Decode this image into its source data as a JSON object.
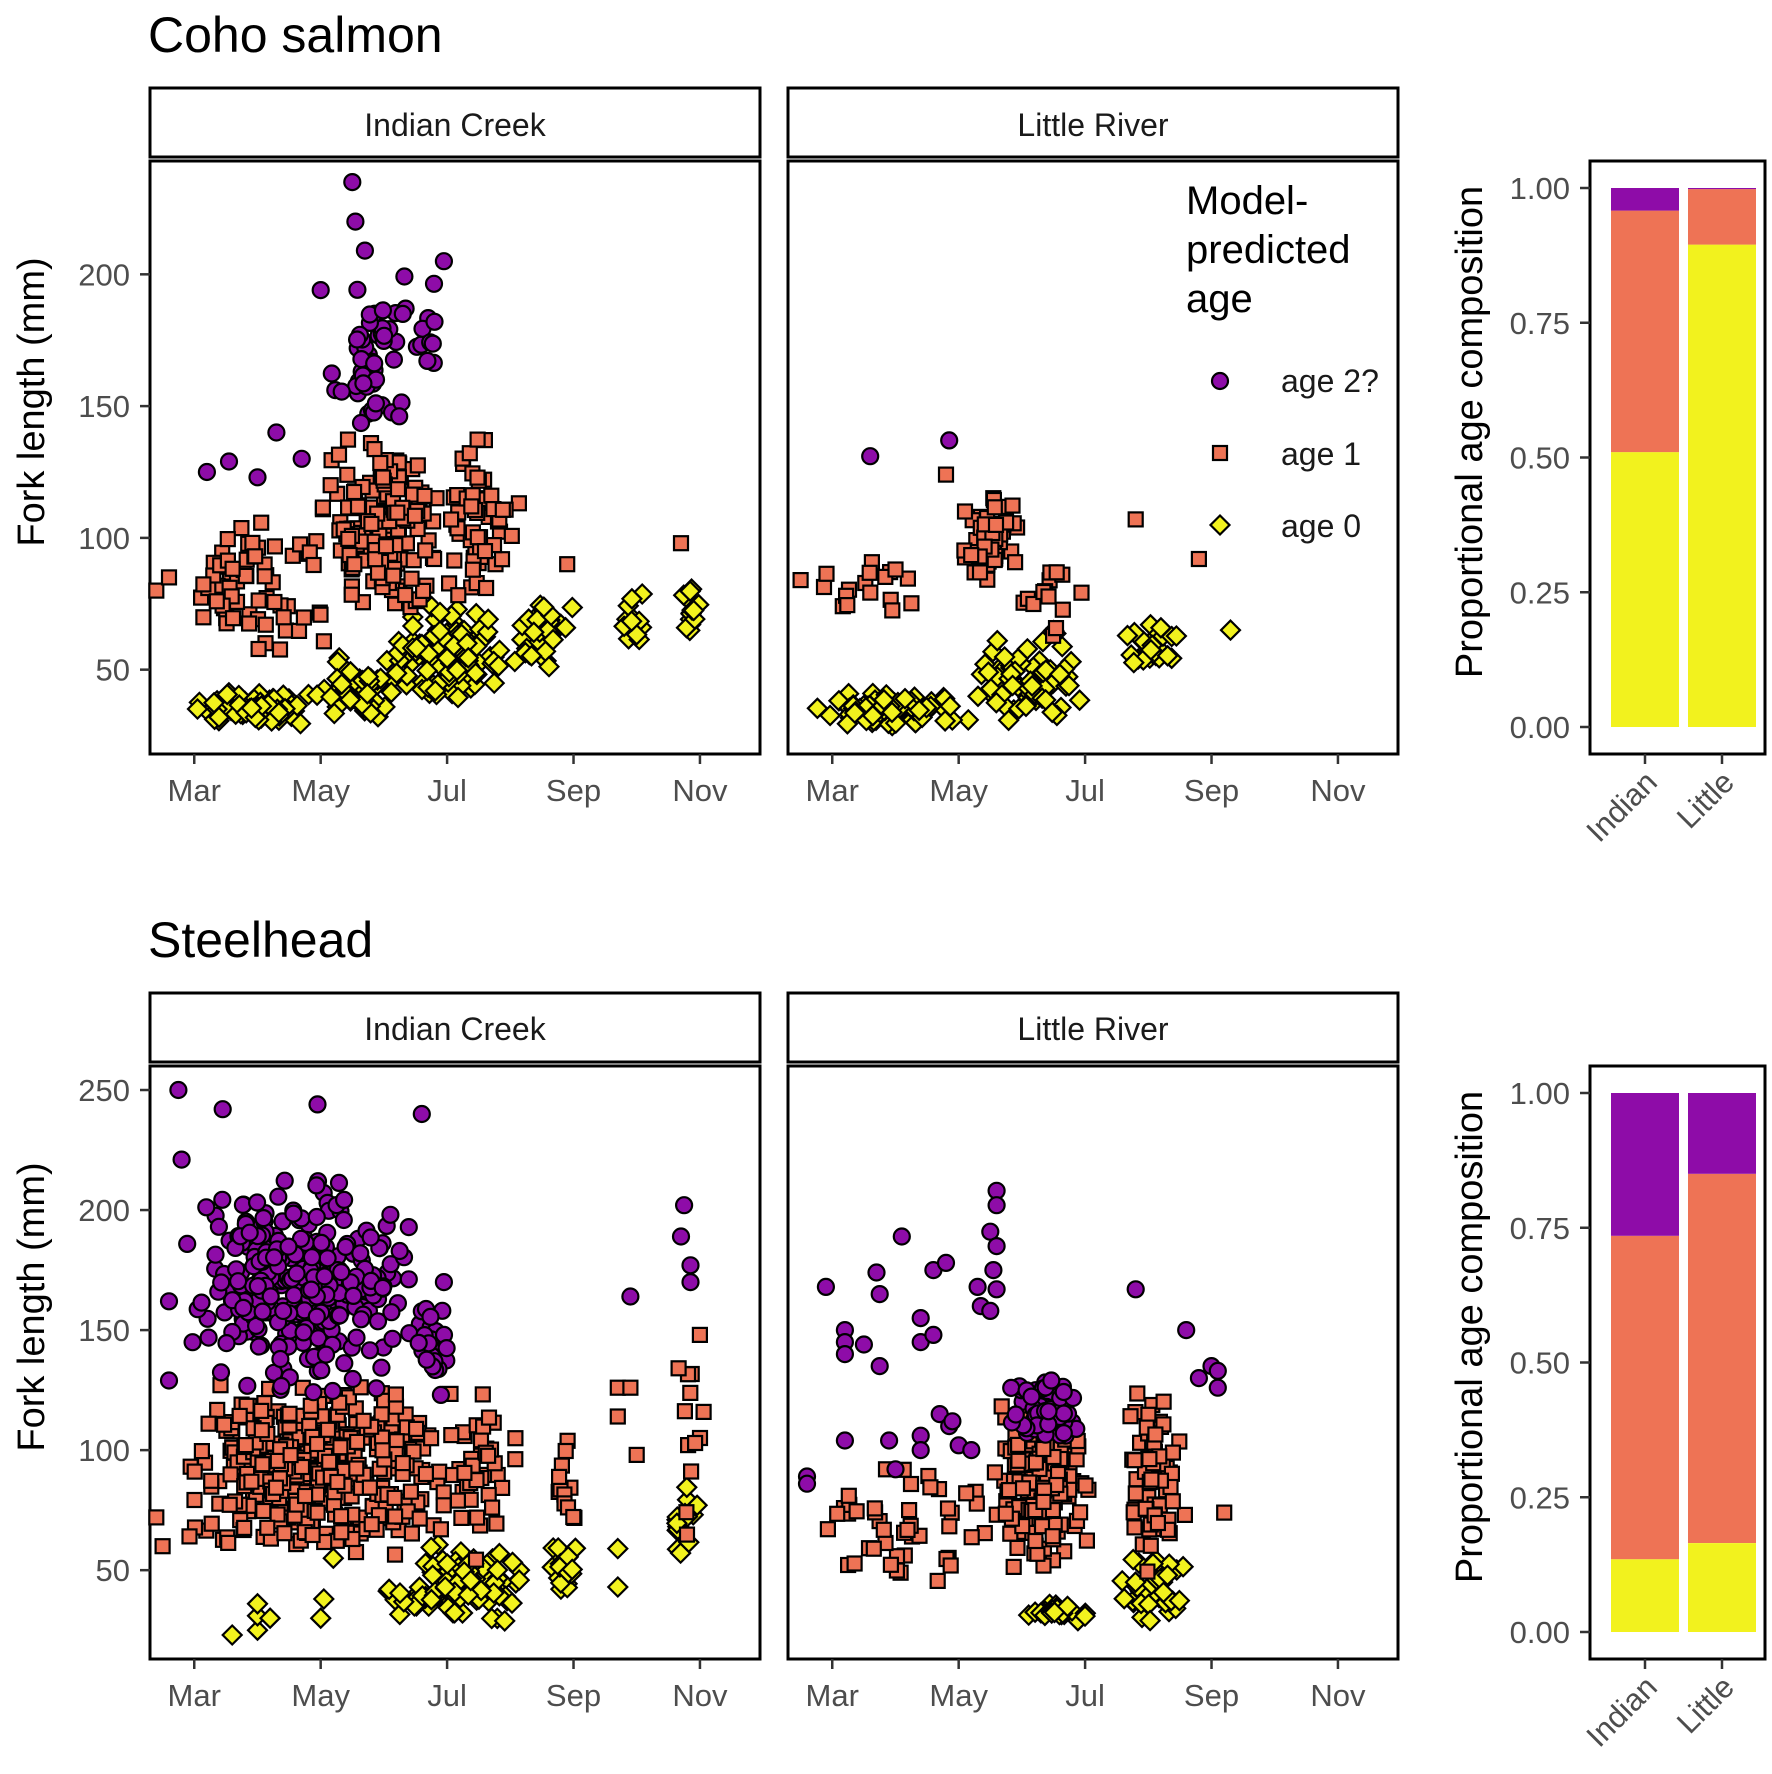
{
  "colors": {
    "age2": "#8E0CA8",
    "age1": "#EE7355",
    "age0": "#F2F21E",
    "outline": "#000000"
  },
  "legend": {
    "title_lines": [
      "Model-",
      "predicted",
      "age"
    ],
    "items": [
      {
        "key": "age2",
        "label": "age 2?"
      },
      {
        "key": "age1",
        "label": "age 1"
      },
      {
        "key": "age0",
        "label": "age 0"
      }
    ]
  },
  "chart_data": [
    {
      "type": "scatter",
      "title": "Coho salmon",
      "ylabel": "Fork length (mm)",
      "facets": [
        "Indian Creek",
        "Little River"
      ],
      "x_ticks": [
        "Mar",
        "May",
        "Jul",
        "Sep",
        "Nov"
      ],
      "x_range_months": [
        1.3,
        10.95
      ],
      "ylim": [
        18,
        243
      ],
      "y_ticks": [
        50,
        100,
        150,
        200
      ],
      "clusters": {
        "Indian Creek": [
          {
            "age": "age0",
            "n": 90,
            "x": [
              1.9,
              4.0
            ],
            "y": [
              29,
              42
            ]
          },
          {
            "age": "age0",
            "n": 55,
            "x": [
              3.9,
              5.2
            ],
            "y": [
              30,
              58
            ]
          },
          {
            "age": "age0",
            "n": 120,
            "x": [
              5.0,
              7.0
            ],
            "y": [
              36,
              75
            ]
          },
          {
            "age": "age0",
            "n": 35,
            "x": [
              7.0,
              8.0
            ],
            "y": [
              48,
              78
            ]
          },
          {
            "age": "age0",
            "n": 12,
            "x": [
              8.7,
              9.2
            ],
            "y": [
              55,
              80
            ]
          },
          {
            "age": "age0",
            "n": 14,
            "x": [
              9.7,
              10.0
            ],
            "y": [
              55,
              84
            ]
          },
          {
            "age": "age1",
            "n": 65,
            "x": [
              1.8,
              4.2
            ],
            "y": [
              55,
              110
            ]
          },
          {
            "age": "age1",
            "n": 170,
            "x": [
              4.0,
              5.9
            ],
            "y": [
              70,
              140
            ]
          },
          {
            "age": "age1",
            "n": 55,
            "x": [
              5.8,
              7.2
            ],
            "y": [
              72,
              145
            ]
          },
          {
            "age": "age2",
            "n": 50,
            "x": [
              4.0,
              5.6
            ],
            "y": [
              138,
              200
            ]
          },
          {
            "age": "age2",
            "n": 9,
            "x": [
              5.5,
              6.0
            ],
            "y": [
              140,
              205
            ]
          }
        ],
        "Little River": [
          {
            "age": "age0",
            "n": 90,
            "x": [
              1.7,
              4.2
            ],
            "y": [
              28,
              42
            ]
          },
          {
            "age": "age0",
            "n": 70,
            "x": [
              4.2,
              6.0
            ],
            "y": [
              30,
              66
            ]
          },
          {
            "age": "age0",
            "n": 25,
            "x": [
              6.5,
              7.5
            ],
            "y": [
              50,
              72
            ]
          },
          {
            "age": "age1",
            "n": 16,
            "x": [
              1.6,
              3.6
            ],
            "y": [
              68,
              92
            ]
          },
          {
            "age": "age1",
            "n": 45,
            "x": [
              4.0,
              5.0
            ],
            "y": [
              78,
              118
            ]
          },
          {
            "age": "age1",
            "n": 14,
            "x": [
              5.0,
              6.0
            ],
            "y": [
              58,
              92
            ]
          }
        ]
      },
      "points": {
        "Indian Creek": [
          {
            "age": "age2",
            "x": 4.5,
            "y": 235
          },
          {
            "age": "age2",
            "x": 4.55,
            "y": 220
          },
          {
            "age": "age2",
            "x": 4.7,
            "y": 209
          },
          {
            "age": "age2",
            "x": 5.95,
            "y": 205
          },
          {
            "age": "age2",
            "x": 4.0,
            "y": 194
          },
          {
            "age": "age2",
            "x": 5.3,
            "y": 185
          },
          {
            "age": "age2",
            "x": 5.8,
            "y": 182
          },
          {
            "age": "age2",
            "x": 3.3,
            "y": 140
          },
          {
            "age": "age2",
            "x": 2.2,
            "y": 125
          },
          {
            "age": "age2",
            "x": 2.55,
            "y": 129
          },
          {
            "age": "age2",
            "x": 3.0,
            "y": 123
          },
          {
            "age": "age2",
            "x": 3.7,
            "y": 130
          },
          {
            "age": "age1",
            "x": 9.7,
            "y": 98
          },
          {
            "age": "age1",
            "x": 7.9,
            "y": 90
          },
          {
            "age": "age1",
            "x": 6.6,
            "y": 95
          },
          {
            "age": "age1",
            "x": 1.4,
            "y": 80
          },
          {
            "age": "age1",
            "x": 1.6,
            "y": 85
          }
        ],
        "Little River": [
          {
            "age": "age2",
            "x": 2.6,
            "y": 131
          },
          {
            "age": "age2",
            "x": 3.85,
            "y": 137
          },
          {
            "age": "age1",
            "x": 3.8,
            "y": 124
          },
          {
            "age": "age1",
            "x": 1.5,
            "y": 84
          },
          {
            "age": "age1",
            "x": 6.8,
            "y": 107
          },
          {
            "age": "age1",
            "x": 7.8,
            "y": 92
          },
          {
            "age": "age1",
            "x": 4.1,
            "y": 110
          },
          {
            "age": "age1",
            "x": 3.0,
            "y": 88
          },
          {
            "age": "age0",
            "x": 8.3,
            "y": 65
          }
        ]
      },
      "composition": {
        "ylabel": "Proportional age composition",
        "y_ticks": [
          "0.00",
          "0.25",
          "0.50",
          "0.75",
          "1.00"
        ],
        "categories": [
          "Indian",
          "Little"
        ],
        "series": [
          {
            "name": "age 0",
            "key": "age0",
            "values": [
              0.51,
              0.895
            ]
          },
          {
            "name": "age 1",
            "key": "age1",
            "values": [
              0.448,
              0.103
            ]
          },
          {
            "name": "age 2?",
            "key": "age2",
            "values": [
              0.042,
              0.002
            ]
          }
        ]
      }
    },
    {
      "type": "scatter",
      "title": "Steelhead",
      "ylabel": "Fork length (mm)",
      "facets": [
        "Indian Creek",
        "Little River"
      ],
      "x_ticks": [
        "Mar",
        "May",
        "Jul",
        "Sep",
        "Nov"
      ],
      "x_range_months": [
        1.3,
        10.95
      ],
      "ylim": [
        13,
        260
      ],
      "y_ticks": [
        50,
        100,
        150,
        200,
        250
      ],
      "clusters": {
        "Indian Creek": [
          {
            "age": "age2",
            "n": 320,
            "x": [
              1.8,
              5.7
            ],
            "y": [
              120,
              215
            ]
          },
          {
            "age": "age2",
            "n": 25,
            "x": [
              5.5,
              6.0
            ],
            "y": [
              120,
              165
            ]
          },
          {
            "age": "age1",
            "n": 420,
            "x": [
              1.8,
              6.0
            ],
            "y": [
              55,
              130
            ]
          },
          {
            "age": "age1",
            "n": 40,
            "x": [
              5.9,
              7.2
            ],
            "y": [
              50,
              135
            ]
          },
          {
            "age": "age1",
            "n": 12,
            "x": [
              7.6,
              8.2
            ],
            "y": [
              45,
              110
            ]
          },
          {
            "age": "age1",
            "n": 12,
            "x": [
              9.5,
              10.1
            ],
            "y": [
              55,
              150
            ]
          },
          {
            "age": "age0",
            "n": 110,
            "x": [
              4.9,
              7.3
            ],
            "y": [
              25,
              62
            ]
          },
          {
            "age": "age0",
            "n": 25,
            "x": [
              7.6,
              8.1
            ],
            "y": [
              40,
              62
            ]
          },
          {
            "age": "age0",
            "n": 20,
            "x": [
              9.5,
              10.0
            ],
            "y": [
              50,
              90
            ]
          }
        ],
        "Little River": [
          {
            "age": "age2",
            "n": 60,
            "x": [
              4.8,
              6.0
            ],
            "y": [
              100,
              130
            ]
          },
          {
            "age": "age1",
            "n": 190,
            "x": [
              4.5,
              6.1
            ],
            "y": [
              50,
              125
            ]
          },
          {
            "age": "age1",
            "n": 45,
            "x": [
              1.8,
              4.6
            ],
            "y": [
              45,
              98
            ]
          },
          {
            "age": "age1",
            "n": 65,
            "x": [
              6.5,
              7.6
            ],
            "y": [
              45,
              125
            ]
          },
          {
            "age": "age0",
            "n": 25,
            "x": [
              5.0,
              6.1
            ],
            "y": [
              28,
              37
            ]
          },
          {
            "age": "age0",
            "n": 45,
            "x": [
              6.5,
              7.6
            ],
            "y": [
              26,
              60
            ]
          }
        ]
      },
      "points": {
        "Indian Creek": [
          {
            "age": "age2",
            "x": 1.75,
            "y": 250
          },
          {
            "age": "age2",
            "x": 2.45,
            "y": 242
          },
          {
            "age": "age2",
            "x": 3.95,
            "y": 244
          },
          {
            "age": "age2",
            "x": 5.6,
            "y": 240
          },
          {
            "age": "age2",
            "x": 1.8,
            "y": 221
          },
          {
            "age": "age2",
            "x": 1.6,
            "y": 162
          },
          {
            "age": "age2",
            "x": 1.6,
            "y": 129
          },
          {
            "age": "age2",
            "x": 9.75,
            "y": 202
          },
          {
            "age": "age2",
            "x": 9.7,
            "y": 189
          },
          {
            "age": "age2",
            "x": 9.85,
            "y": 177
          },
          {
            "age": "age2",
            "x": 9.85,
            "y": 170
          },
          {
            "age": "age2",
            "x": 8.9,
            "y": 164
          },
          {
            "age": "age2",
            "x": 5.95,
            "y": 170
          },
          {
            "age": "age1",
            "x": 10.0,
            "y": 148
          },
          {
            "age": "age1",
            "x": 8.7,
            "y": 126
          },
          {
            "age": "age1",
            "x": 8.9,
            "y": 126
          },
          {
            "age": "age1",
            "x": 8.7,
            "y": 114
          },
          {
            "age": "age1",
            "x": 9.0,
            "y": 98
          },
          {
            "age": "age1",
            "x": 1.4,
            "y": 72
          },
          {
            "age": "age1",
            "x": 1.5,
            "y": 60
          },
          {
            "age": "age0",
            "x": 2.6,
            "y": 23
          },
          {
            "age": "age0",
            "x": 3.0,
            "y": 25
          },
          {
            "age": "age0",
            "x": 3.0,
            "y": 31
          },
          {
            "age": "age0",
            "x": 3.2,
            "y": 30
          },
          {
            "age": "age0",
            "x": 4.0,
            "y": 30
          },
          {
            "age": "age0",
            "x": 4.05,
            "y": 38
          },
          {
            "age": "age0",
            "x": 4.2,
            "y": 55
          },
          {
            "age": "age0",
            "x": 3.0,
            "y": 36
          },
          {
            "age": "age0",
            "x": 8.7,
            "y": 59
          },
          {
            "age": "age0",
            "x": 8.7,
            "y": 43
          }
        ],
        "Little River": [
          {
            "age": "age2",
            "x": 4.6,
            "y": 208
          },
          {
            "age": "age2",
            "x": 4.6,
            "y": 202
          },
          {
            "age": "age2",
            "x": 4.5,
            "y": 191
          },
          {
            "age": "age2",
            "x": 4.6,
            "y": 185
          },
          {
            "age": "age2",
            "x": 4.55,
            "y": 175
          },
          {
            "age": "age2",
            "x": 4.6,
            "y": 167
          },
          {
            "age": "age2",
            "x": 4.3,
            "y": 168
          },
          {
            "age": "age2",
            "x": 4.35,
            "y": 160
          },
          {
            "age": "age2",
            "x": 4.5,
            "y": 158
          },
          {
            "age": "age2",
            "x": 3.6,
            "y": 175
          },
          {
            "age": "age2",
            "x": 3.8,
            "y": 178
          },
          {
            "age": "age2",
            "x": 3.1,
            "y": 189
          },
          {
            "age": "age2",
            "x": 2.7,
            "y": 174
          },
          {
            "age": "age2",
            "x": 2.75,
            "y": 165
          },
          {
            "age": "age2",
            "x": 2.75,
            "y": 135
          },
          {
            "age": "age2",
            "x": 1.9,
            "y": 168
          },
          {
            "age": "age2",
            "x": 2.2,
            "y": 150
          },
          {
            "age": "age2",
            "x": 2.2,
            "y": 145
          },
          {
            "age": "age2",
            "x": 2.2,
            "y": 140
          },
          {
            "age": "age2",
            "x": 2.5,
            "y": 144
          },
          {
            "age": "age2",
            "x": 3.4,
            "y": 155
          },
          {
            "age": "age2",
            "x": 3.4,
            "y": 145
          },
          {
            "age": "age2",
            "x": 3.6,
            "y": 148
          },
          {
            "age": "age2",
            "x": 6.8,
            "y": 167
          },
          {
            "age": "age2",
            "x": 7.6,
            "y": 150
          },
          {
            "age": "age2",
            "x": 8.0,
            "y": 135
          },
          {
            "age": "age2",
            "x": 7.8,
            "y": 130
          },
          {
            "age": "age2",
            "x": 8.1,
            "y": 133
          },
          {
            "age": "age2",
            "x": 8.1,
            "y": 126
          },
          {
            "age": "age2",
            "x": 1.6,
            "y": 89
          },
          {
            "age": "age2",
            "x": 1.6,
            "y": 86
          },
          {
            "age": "age2",
            "x": 2.2,
            "y": 104
          },
          {
            "age": "age2",
            "x": 2.9,
            "y": 104
          },
          {
            "age": "age2",
            "x": 3.0,
            "y": 92
          },
          {
            "age": "age2",
            "x": 3.4,
            "y": 106
          },
          {
            "age": "age2",
            "x": 3.4,
            "y": 100
          },
          {
            "age": "age2",
            "x": 3.7,
            "y": 115
          },
          {
            "age": "age2",
            "x": 3.85,
            "y": 110
          },
          {
            "age": "age2",
            "x": 3.9,
            "y": 112
          },
          {
            "age": "age2",
            "x": 4.0,
            "y": 102
          },
          {
            "age": "age2",
            "x": 4.2,
            "y": 100
          },
          {
            "age": "age1",
            "x": 8.2,
            "y": 74
          }
        ]
      },
      "composition": {
        "ylabel": "Proportional age composition",
        "y_ticks": [
          "0.00",
          "0.25",
          "0.50",
          "0.75",
          "1.00"
        ],
        "categories": [
          "Indian",
          "Little"
        ],
        "series": [
          {
            "name": "age 0",
            "key": "age0",
            "values": [
              0.135,
              0.165
            ]
          },
          {
            "name": "age 1",
            "key": "age1",
            "values": [
              0.6,
              0.685
            ]
          },
          {
            "name": "age 2?",
            "key": "age2",
            "values": [
              0.265,
              0.15
            ]
          }
        ]
      }
    }
  ]
}
